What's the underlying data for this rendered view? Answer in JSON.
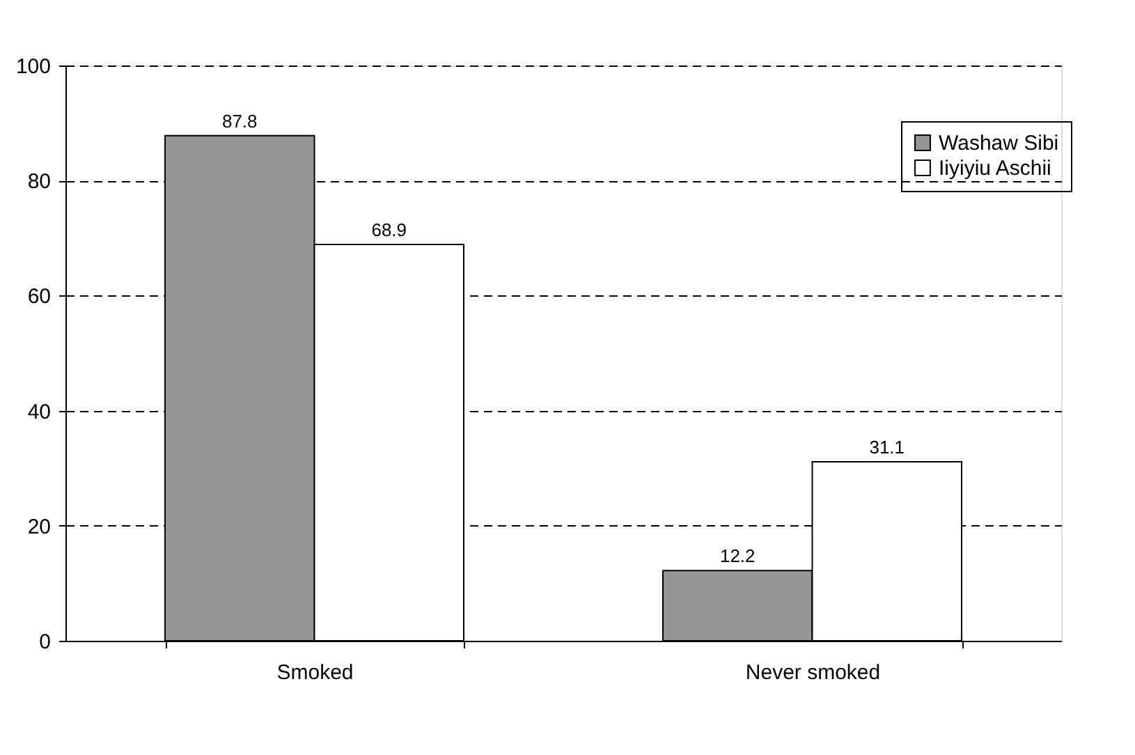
{
  "chart_data": {
    "type": "bar",
    "categories": [
      "Smoked",
      "Never smoked"
    ],
    "series": [
      {
        "name": "Washaw Sibi",
        "color": "#969696",
        "values": [
          87.8,
          12.2
        ]
      },
      {
        "name": "Iiyiyiu Aschii",
        "color": "#ffffff",
        "values": [
          68.9,
          31.1
        ]
      }
    ],
    "ylim": [
      0,
      100
    ],
    "yticks": [
      0,
      20,
      40,
      60,
      80,
      100
    ],
    "grid": "y",
    "legend": "top right",
    "data_labels": true
  }
}
